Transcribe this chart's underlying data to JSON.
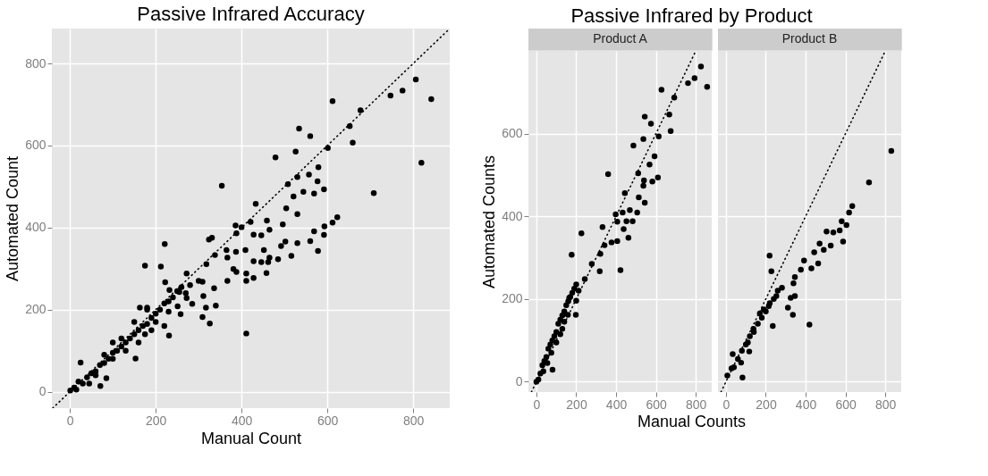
{
  "chart_data": [
    {
      "type": "scatter",
      "title": "Passive Infrared  Accuracy",
      "xlabel": "Manual Count",
      "ylabel": "Automated Count",
      "grid": true,
      "xlim": [
        -42,
        885
      ],
      "ylim": [
        -40,
        885
      ],
      "xticks": [
        0,
        200,
        400,
        600,
        800
      ],
      "yticks": [
        0,
        200,
        400,
        600,
        800
      ],
      "series": [
        {
          "marker": "circle",
          "color": "#000000",
          "x": [
            806,
            842,
            775,
            747,
            819,
            612,
            677,
            652,
            659,
            534,
            560,
            601,
            526,
            479,
            708,
            354,
            579,
            557,
            530,
            577,
            508,
            592,
            544,
            569,
            521,
            433,
            504,
            530,
            623,
            612,
            593,
            459,
            421,
            496,
            386,
            400,
            465,
            569,
            592,
            428,
            446,
            388,
            331,
            324,
            221,
            502,
            530,
            560,
            492,
            365,
            387,
            409,
            452,
            578,
            338,
            367,
            516,
            465,
            485,
            428,
            446,
            462,
            175,
            212,
            318,
            381,
            388,
            458,
            272,
            411,
            428,
            411,
            367,
            222,
            309,
            336,
            232,
            255,
            311,
            272,
            285,
            340,
            317,
            163,
            180,
            251,
            258,
            309,
            326,
            411,
            231,
            25,
            153,
            71,
            85,
            1,
            10,
            20,
            30,
            40,
            50,
            60,
            70,
            80,
            90,
            100,
            110,
            120,
            130,
            140,
            150,
            160,
            170,
            180,
            190,
            200,
            210,
            220,
            230,
            240,
            250,
            260,
            150,
            100,
            80,
            200,
            180,
            60,
            120,
            175,
            230,
            280,
            270,
            300,
            15,
            45,
            100,
            130,
            160,
            190,
            220
          ],
          "values": [
            761,
            713,
            734,
            722,
            558,
            708,
            686,
            647,
            607,
            641,
            623,
            594,
            585,
            571,
            484,
            502,
            547,
            529,
            523,
            513,
            506,
            493,
            487,
            483,
            476,
            458,
            447,
            433,
            425,
            412,
            403,
            417,
            414,
            408,
            405,
            401,
            395,
            391,
            382,
            383,
            381,
            386,
            375,
            371,
            360,
            366,
            362,
            367,
            355,
            345,
            341,
            345,
            345,
            343,
            333,
            327,
            331,
            327,
            323,
            318,
            316,
            316,
            307,
            305,
            311,
            299,
            292,
            289,
            288,
            288,
            277,
            270,
            270,
            267,
            268,
            252,
            248,
            243,
            233,
            228,
            214,
            210,
            205,
            205,
            205,
            208,
            189,
            182,
            166,
            142,
            137,
            71,
            81,
            14,
            33,
            3,
            10,
            25,
            20,
            35,
            45,
            50,
            65,
            70,
            80,
            95,
            100,
            110,
            120,
            130,
            140,
            150,
            160,
            165,
            180,
            190,
            200,
            215,
            220,
            230,
            245,
            255,
            170,
            120,
            90,
            170,
            200,
            40,
            130,
            140,
            195,
            260,
            240,
            270,
            5,
            20,
            80,
            100,
            120,
            150,
            160
          ]
        },
        {
          "type": "line",
          "marker": "none",
          "color": "#000000",
          "line_style": "dotted",
          "x": [
            -40,
            885
          ],
          "values": [
            -40,
            885
          ]
        }
      ]
    },
    {
      "type": "scatter",
      "title": "Passive Infrared by Product",
      "subtitle": "Product A",
      "xlabel": "Manual Counts",
      "ylabel": "Automated Counts",
      "grid": true,
      "xlim": [
        -40,
        880
      ],
      "ylim": [
        -25,
        800
      ],
      "xticks": [
        0,
        200,
        400,
        600,
        800
      ],
      "yticks": [
        0,
        200,
        400,
        600
      ],
      "series": [
        {
          "marker": "circle",
          "color": "#000000",
          "x": [
            826,
            794,
            761,
            857,
            628,
            692,
            667,
            674,
            544,
            575,
            614,
            537,
            487,
            593,
            360,
            568,
            511,
            610,
            540,
            582,
            537,
            444,
            514,
            544,
            506,
            469,
            398,
            433,
            452,
            406,
            483,
            332,
            226,
            438,
            462,
            406,
            377,
            342,
            321,
            177,
            278,
            318,
            422,
            243,
            212,
            165,
            200,
            198,
            158,
            130,
            81,
            0,
            20,
            30,
            40,
            50,
            60,
            70,
            80,
            90,
            100,
            110,
            120,
            130,
            140,
            150,
            160,
            170,
            180,
            190,
            200,
            10,
            55,
            75,
            100,
            120,
            140,
            35
          ],
          "values": [
            762,
            734,
            722,
            713,
            706,
            687,
            646,
            606,
            641,
            624,
            593,
            587,
            571,
            545,
            502,
            525,
            504,
            494,
            487,
            484,
            474,
            456,
            446,
            433,
            409,
            415,
            405,
            409,
            388,
            387,
            388,
            374,
            359,
            369,
            348,
            340,
            337,
            330,
            309,
            307,
            285,
            267,
            270,
            248,
            220,
            203,
            196,
            162,
            162,
            128,
            29,
            0,
            20,
            40,
            50,
            60,
            80,
            90,
            100,
            110,
            120,
            140,
            150,
            160,
            170,
            185,
            195,
            205,
            215,
            225,
            235,
            5,
            45,
            70,
            95,
            115,
            145,
            25
          ]
        },
        {
          "type": "line",
          "marker": "none",
          "color": "#000000",
          "line_style": "dotted",
          "x": [
            -25,
            800
          ],
          "values": [
            -25,
            800
          ]
        }
      ]
    },
    {
      "type": "scatter",
      "subtitle": "Product B",
      "grid": true,
      "tick_labels": "x",
      "xlim": [
        -40,
        880
      ],
      "ylim": [
        -25,
        800
      ],
      "xticks": [
        0,
        200,
        400,
        600,
        800
      ],
      "yticks": [
        0,
        200,
        400,
        600
      ],
      "series": [
        {
          "marker": "circle",
          "color": "#000000",
          "x": [
            830,
            718,
            634,
            618,
            581,
            605,
            505,
            539,
            571,
            588,
            526,
            470,
            443,
            491,
            463,
            392,
            429,
            219,
            228,
            376,
            346,
            339,
            281,
            253,
            346,
            325,
            311,
            336,
            419,
            235,
            215,
            138,
            117,
            34,
            76,
            28,
            7,
            83,
            120,
            140,
            160,
            180,
            200,
            220,
            240,
            100,
            80,
            60,
            40,
            110,
            260,
            190,
            170
          ],
          "values": [
            558,
            482,
            425,
            409,
            388,
            379,
            363,
            361,
            366,
            339,
            329,
            334,
            313,
            319,
            286,
            293,
            274,
            305,
            267,
            271,
            253,
            238,
            227,
            207,
            207,
            203,
            179,
            162,
            138,
            135,
            183,
            128,
            73,
            67,
            46,
            32,
            15,
            10,
            110,
            120,
            140,
            155,
            170,
            190,
            200,
            90,
            75,
            55,
            35,
            95,
            220,
            175,
            165
          ]
        },
        {
          "type": "line",
          "marker": "none",
          "color": "#000000",
          "line_style": "dotted",
          "x": [
            -25,
            800
          ],
          "values": [
            -25,
            800
          ]
        }
      ]
    }
  ]
}
